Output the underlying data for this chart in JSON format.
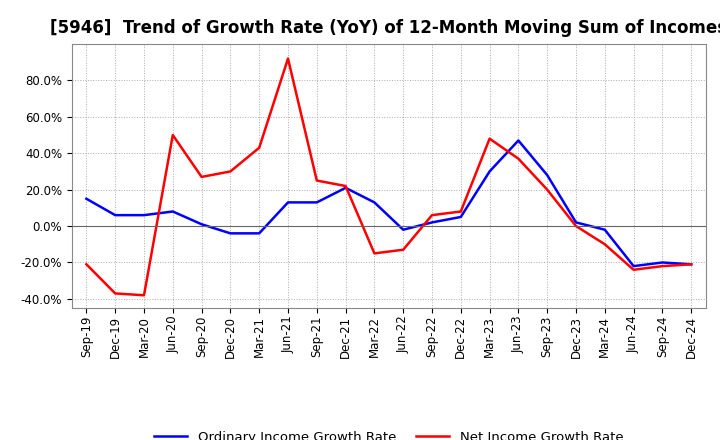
{
  "title": "[5946]  Trend of Growth Rate (YoY) of 12-Month Moving Sum of Incomes",
  "x_labels": [
    "Sep-19",
    "Dec-19",
    "Mar-20",
    "Jun-20",
    "Sep-20",
    "Dec-20",
    "Mar-21",
    "Jun-21",
    "Sep-21",
    "Dec-21",
    "Mar-22",
    "Jun-22",
    "Sep-22",
    "Dec-22",
    "Mar-23",
    "Jun-23",
    "Sep-23",
    "Dec-23",
    "Mar-24",
    "Jun-24",
    "Sep-24",
    "Dec-24"
  ],
  "ordinary_income": [
    0.15,
    0.06,
    0.06,
    0.08,
    0.01,
    -0.04,
    -0.04,
    0.13,
    0.13,
    0.21,
    0.13,
    -0.02,
    0.02,
    0.05,
    0.3,
    0.47,
    0.28,
    0.02,
    -0.02,
    -0.22,
    -0.2,
    -0.21
  ],
  "net_income": [
    -0.21,
    -0.37,
    -0.38,
    0.5,
    0.27,
    0.3,
    0.43,
    0.92,
    0.25,
    0.22,
    -0.15,
    -0.13,
    0.06,
    0.08,
    0.48,
    0.37,
    0.2,
    0.0,
    -0.1,
    -0.24,
    -0.22,
    -0.21
  ],
  "ordinary_color": "#0000ff",
  "net_color": "#ff0000",
  "ylim": [
    -0.45,
    1.0
  ],
  "yticks": [
    -0.4,
    -0.2,
    0.0,
    0.2,
    0.4,
    0.6,
    0.8
  ],
  "background_color": "#ffffff",
  "grid_color": "#aaaaaa",
  "legend_ordinary": "Ordinary Income Growth Rate",
  "legend_net": "Net Income Growth Rate",
  "title_fontsize": 12,
  "axis_fontsize": 8.5,
  "legend_fontsize": 9.5
}
